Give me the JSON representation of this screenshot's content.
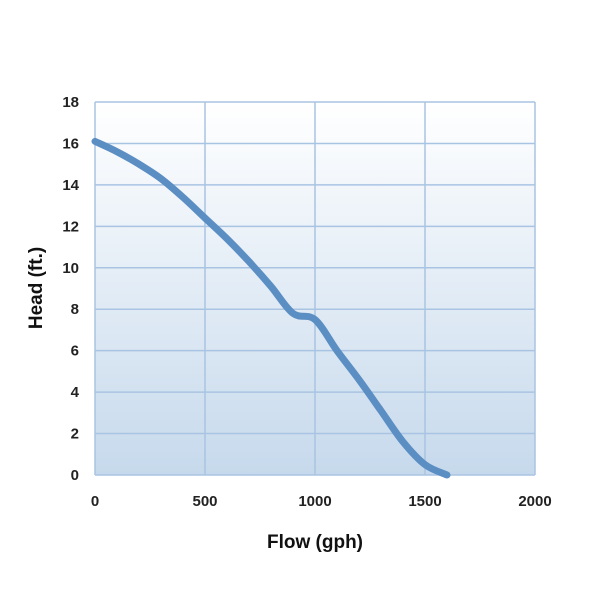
{
  "chart_data": {
    "type": "line",
    "xlabel": "Flow (gph)",
    "ylabel": "Head (ft.)",
    "xlim": [
      0,
      2000
    ],
    "ylim": [
      0,
      18
    ],
    "x_ticks": [
      "0",
      "500",
      "1000",
      "1500",
      "2000"
    ],
    "y_ticks": [
      "0",
      "2",
      "4",
      "6",
      "8",
      "10",
      "12",
      "14",
      "16",
      "18"
    ],
    "grid": true,
    "legend": "none",
    "background_gradient": [
      "#ffffff",
      "#c6d9ec"
    ],
    "series": [
      {
        "color": "#5b8ec3",
        "x": [
          0,
          100,
          200,
          300,
          400,
          500,
          600,
          700,
          800,
          900,
          1000,
          1100,
          1200,
          1300,
          1400,
          1500,
          1600
        ],
        "y": [
          16.1,
          15.6,
          15.0,
          14.3,
          13.4,
          12.4,
          11.4,
          10.3,
          9.1,
          7.8,
          7.5,
          6.0,
          4.6,
          3.1,
          1.6,
          0.5,
          0
        ]
      }
    ]
  }
}
